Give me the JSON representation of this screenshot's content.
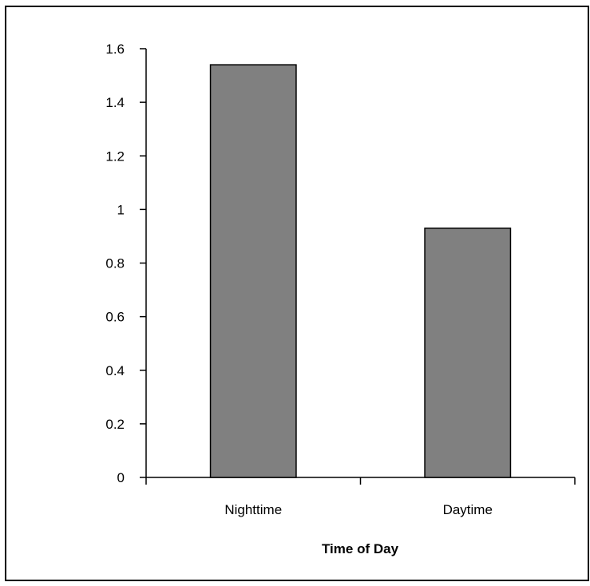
{
  "chart_data": {
    "type": "bar",
    "categories": [
      "Nighttime",
      "Daytime"
    ],
    "values": [
      1.54,
      0.93
    ],
    "title": "",
    "xlabel": "Time of Day",
    "ylabel": "",
    "ylim": [
      0,
      1.6
    ],
    "yticks": [
      "0",
      "0.2",
      "0.4",
      "0.6",
      "0.8",
      "1",
      "1.2",
      "1.4",
      "1.6"
    ],
    "grid": false,
    "legend": "none",
    "bar_color": "#808080",
    "bar_edge_color": "#000000"
  }
}
